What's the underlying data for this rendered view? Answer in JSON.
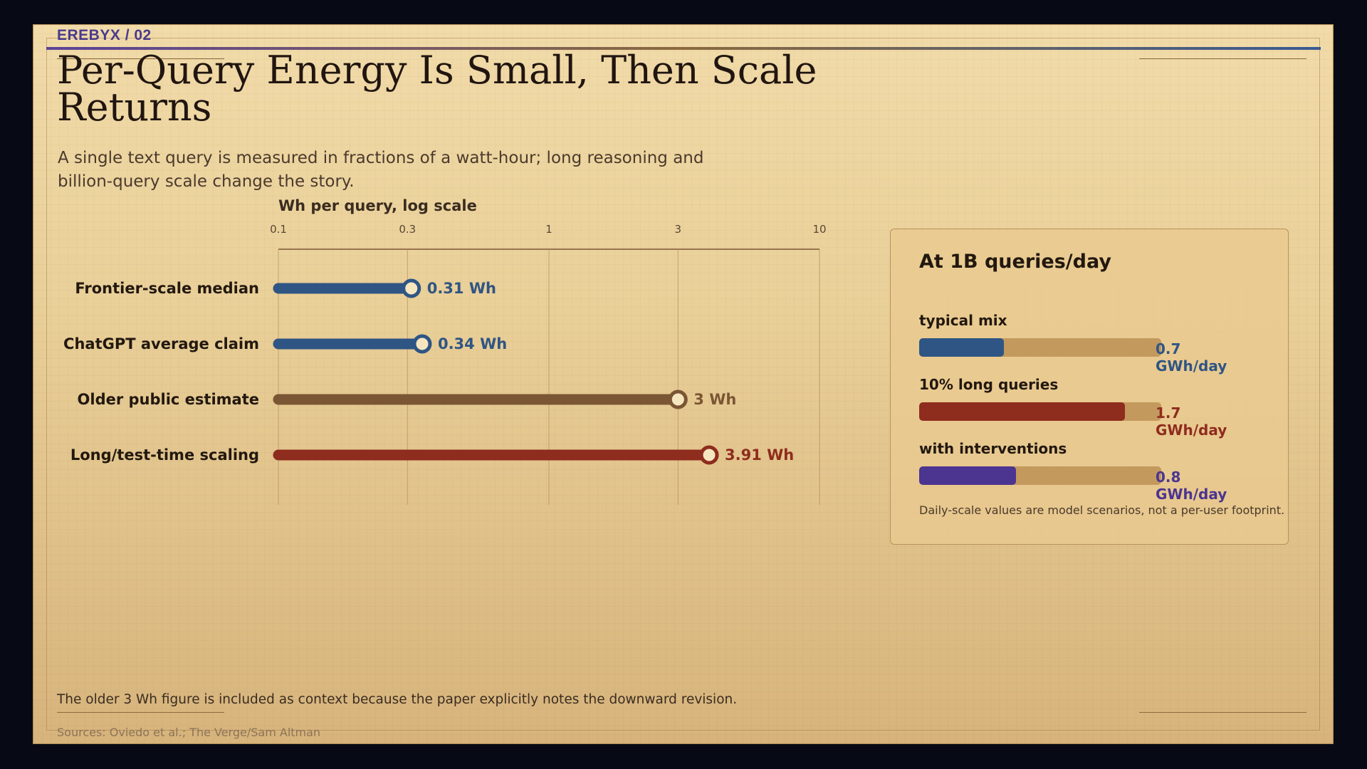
{
  "kicker": "EREBYX / 02",
  "title": "Per-Query Energy Is Small, Then Scale Returns",
  "subtitle": "A single text query is measured in fractions of a watt-hour; long reasoning and billion-query scale change the story.",
  "colors": {
    "blue": "#2f5584",
    "brown": "#7a5634",
    "red": "#8e2c1e",
    "purple": "#4b3590",
    "track": "#c3995e"
  },
  "chart_data": {
    "type": "bar",
    "orientation": "horizontal",
    "style": "lollipop",
    "x_scale": "log",
    "xlabel": "Wh per query, log scale",
    "xlim": [
      0.1,
      10
    ],
    "ticks": [
      0.1,
      0.3,
      1,
      3,
      10
    ],
    "tick_labels": [
      "0.1",
      "0.3",
      "1",
      "3",
      "10"
    ],
    "grid": true,
    "categories": [
      "Frontier-scale median",
      "ChatGPT average claim",
      "Older public estimate",
      "Long/test-time scaling"
    ],
    "values": [
      0.31,
      0.34,
      3,
      3.91
    ],
    "value_labels": [
      "0.31 Wh",
      "0.34 Wh",
      "3 Wh",
      "3.91 Wh"
    ],
    "bar_colors": [
      "#2f5584",
      "#2f5584",
      "#7a5634",
      "#8e2c1e"
    ]
  },
  "panel": {
    "title": "At 1B queries/day",
    "scenarios": [
      {
        "label": "typical mix",
        "value": 0.7,
        "value_label": "0.7 GWh/day",
        "color": "#2f5584"
      },
      {
        "label": "10% long queries",
        "value": 1.7,
        "value_label": "1.7 GWh/day",
        "color": "#8e2c1e"
      },
      {
        "label": "with interventions",
        "value": 0.8,
        "value_label": "0.8 GWh/day",
        "color": "#4b3590"
      }
    ],
    "scale_max": 2.0,
    "note": "Daily-scale values are model scenarios, not a per-user footprint."
  },
  "footnote": "The older 3 Wh figure is included as context because the paper explicitly notes the downward revision.",
  "sources": "Sources: Oviedo et al.; The Verge/Sam Altman"
}
